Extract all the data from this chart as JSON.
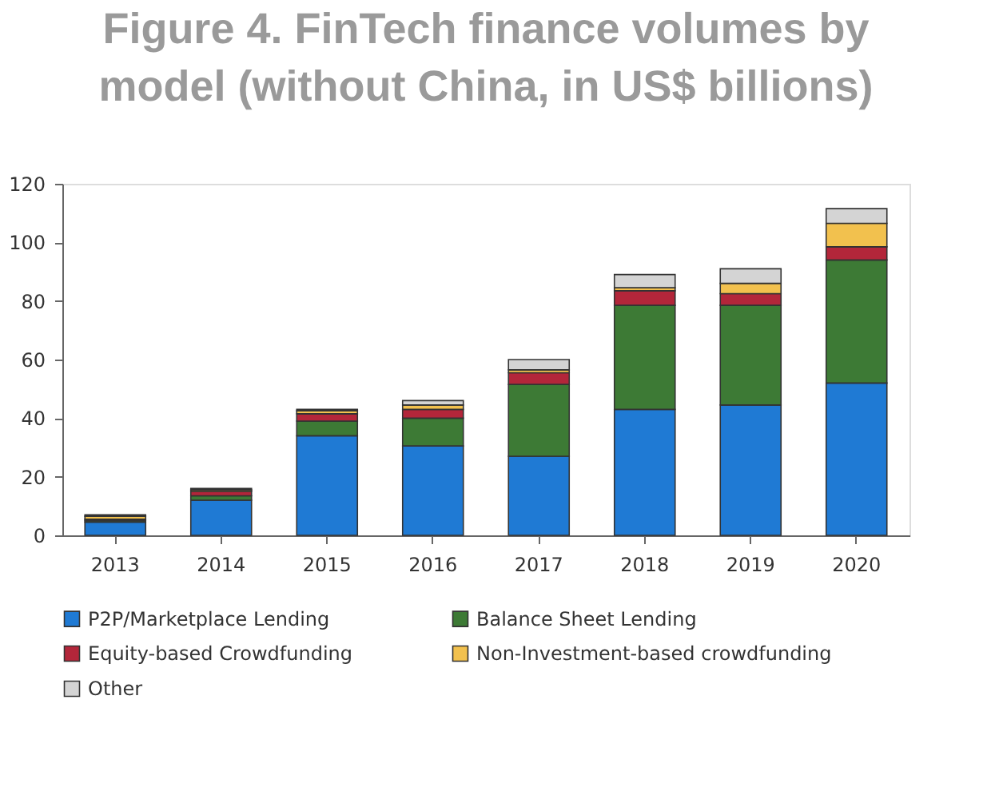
{
  "chart_data": {
    "type": "bar",
    "title": "Figure 4. FinTech finance volumes by model (without China, in US$ billions)",
    "categories": [
      "2013",
      "2014",
      "2015",
      "2016",
      "2017",
      "2018",
      "2019",
      "2020"
    ],
    "stacked": true,
    "ylim": [
      0,
      120
    ],
    "yticks": [
      0,
      20,
      40,
      60,
      80,
      100,
      120
    ],
    "grid": false,
    "legend": "bottom",
    "series": [
      {
        "name": "P2P/Marketplace Lending",
        "color": "#1f7ad4",
        "values": [
          4.5,
          12,
          34,
          30.5,
          27,
          43,
          44.5,
          52
        ]
      },
      {
        "name": "Balance Sheet Lending",
        "color": "#3d7a35",
        "values": [
          0.5,
          1.5,
          5,
          9.5,
          24.5,
          35.5,
          34,
          42
        ]
      },
      {
        "name": "Equity-based Crowdfunding",
        "color": "#b3263a",
        "values": [
          0.5,
          1.5,
          2.5,
          3,
          4,
          5,
          4,
          4.5
        ]
      },
      {
        "name": "Non-Investment-based crowdfunding",
        "color": "#f2c14e",
        "values": [
          1,
          0.5,
          1,
          1.5,
          1,
          1,
          3.5,
          8
        ]
      },
      {
        "name": "Other",
        "color": "#d4d4d4",
        "values": [
          0.5,
          0.5,
          0.5,
          1.5,
          3.5,
          4.5,
          5,
          5
        ]
      }
    ]
  }
}
